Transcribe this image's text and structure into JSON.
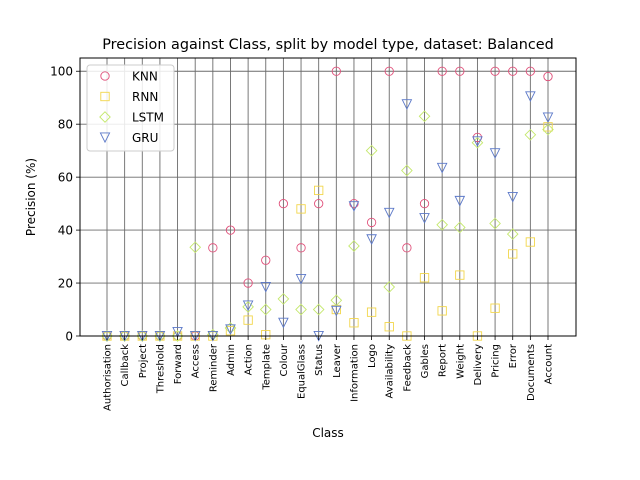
{
  "chart_data": {
    "type": "scatter",
    "title": "Precision against Class, split by model type, dataset: Balanced",
    "xlabel": "Class",
    "ylabel": "Precision (%)",
    "ylim": [
      0,
      105
    ],
    "yticks": [
      0,
      20,
      40,
      60,
      80,
      100
    ],
    "grid": true,
    "legend_position": "top-left",
    "categories": [
      "Authorisation",
      "Callback",
      "Project",
      "Threshold",
      "Forward",
      "Access",
      "Reminder",
      "Admin",
      "Action",
      "Template",
      "Colour",
      "EqualGlass",
      "Status",
      "Leaver",
      "Information",
      "Logo",
      "Availability",
      "Feedback",
      "Gables",
      "Report",
      "Weight",
      "Delivery",
      "Pricing",
      "Error",
      "Documents",
      "Account"
    ],
    "series": [
      {
        "name": "KNN",
        "marker": "circle",
        "color": "#e0507a",
        "values": [
          0,
          0,
          0,
          0,
          0,
          0,
          33.3,
          40,
          20,
          28.6,
          50,
          33.3,
          50,
          100,
          50,
          42.9,
          100,
          33.3,
          50,
          100,
          100,
          75,
          100,
          100,
          100,
          98
        ]
      },
      {
        "name": "RNN",
        "marker": "square",
        "color": "#f2d64b",
        "values": [
          0,
          0,
          0,
          0,
          0,
          0,
          0,
          2,
          6,
          0.5,
          null,
          48,
          55,
          10,
          5,
          9,
          3.5,
          0,
          22,
          9.5,
          23,
          0,
          10.5,
          31,
          35.5,
          79
        ]
      },
      {
        "name": "LSTM",
        "marker": "diamond",
        "color": "#c4e86c",
        "values": [
          0,
          0,
          0,
          0,
          0,
          33.5,
          0.5,
          3,
          11,
          10,
          14,
          10,
          10,
          13.5,
          34,
          70,
          18.5,
          62.5,
          83,
          42,
          41,
          73,
          42.5,
          38.5,
          76,
          78
        ]
      },
      {
        "name": "GRU",
        "marker": "triangle-down",
        "color": "#5b78c8",
        "values": [
          0,
          0,
          0,
          0,
          1.5,
          0,
          0,
          2.5,
          11.5,
          18.5,
          5,
          21.5,
          0,
          9.5,
          49,
          36.5,
          46.5,
          87.5,
          44.5,
          63.5,
          51,
          73.5,
          69,
          52.5,
          90.5,
          82.5
        ]
      }
    ]
  }
}
